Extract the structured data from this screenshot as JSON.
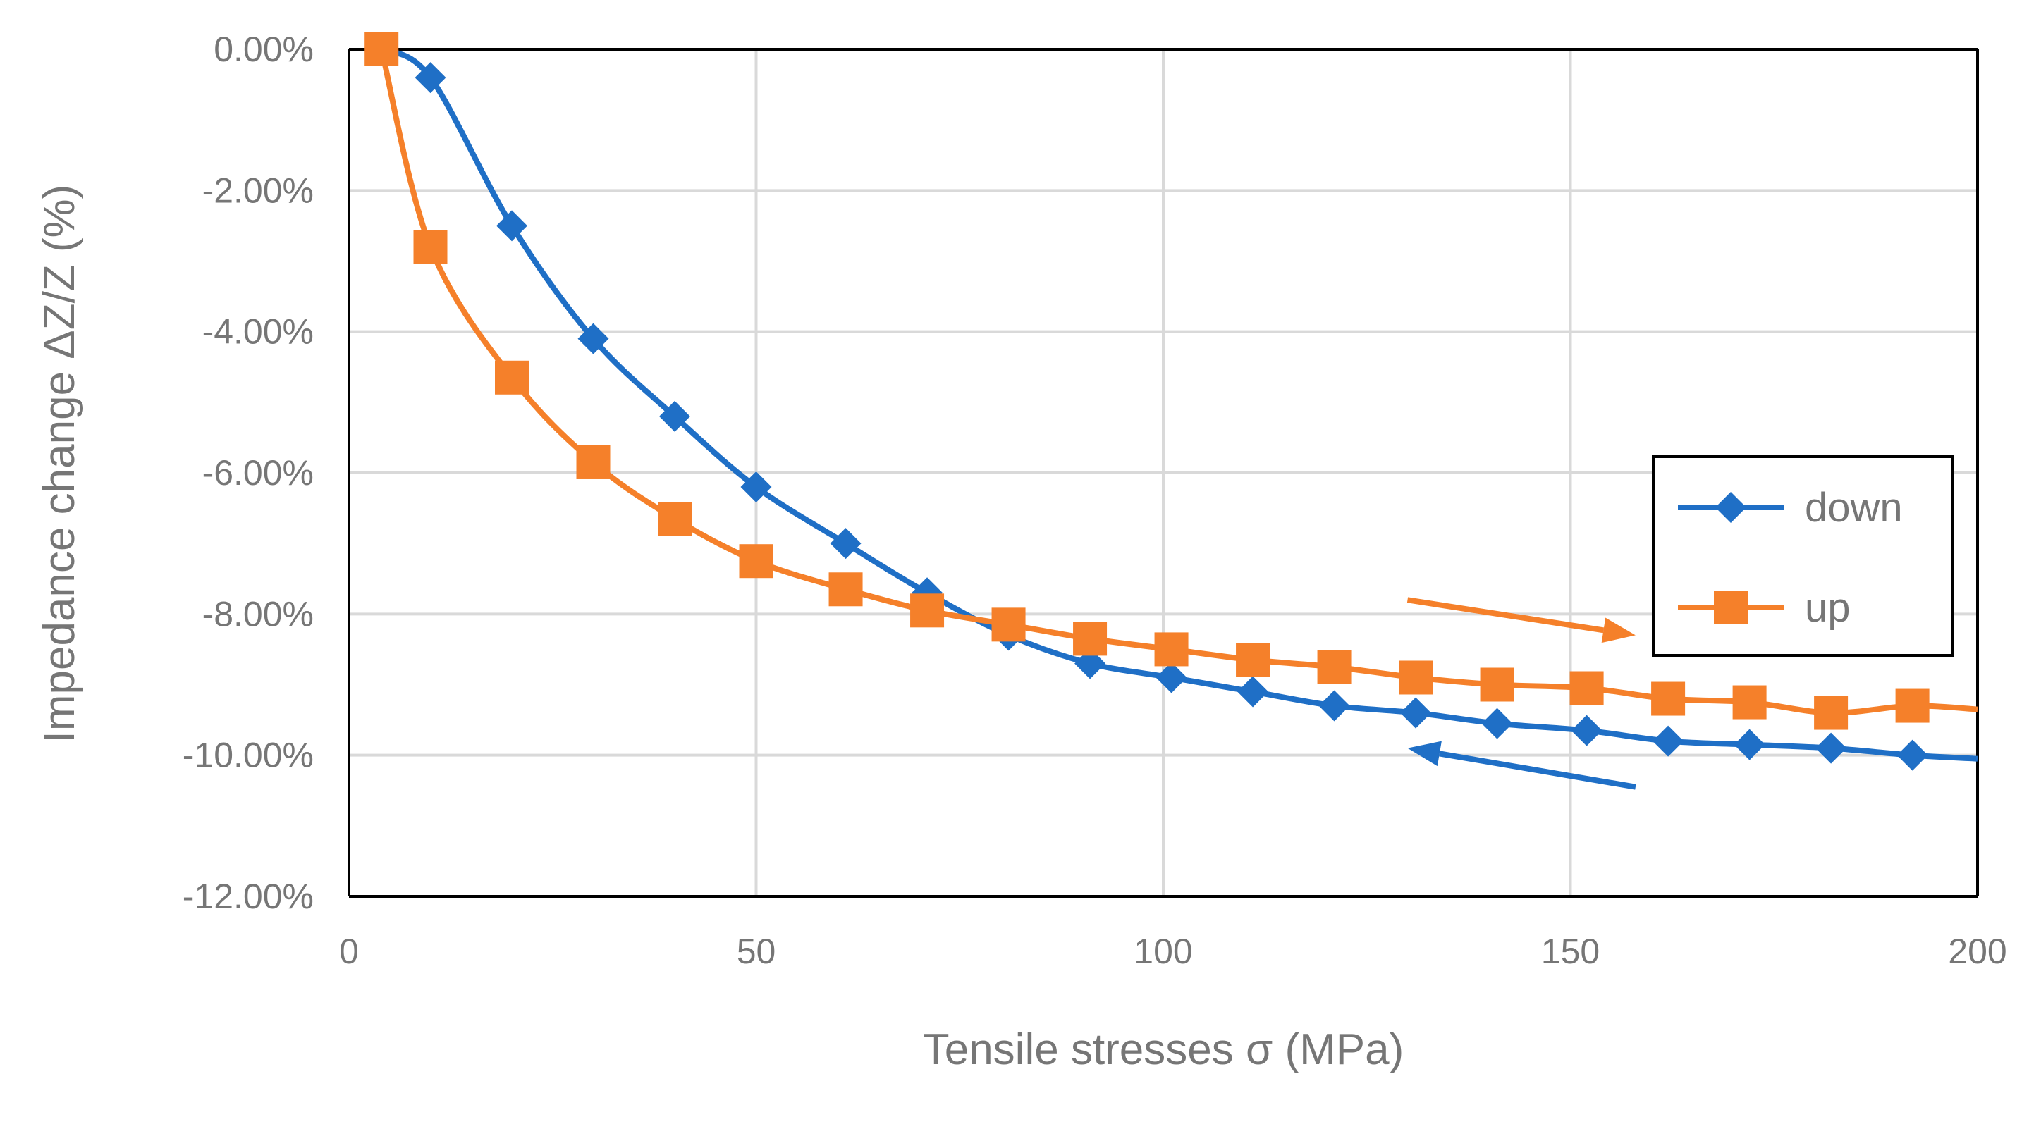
{
  "chart_data": {
    "type": "line",
    "title": "",
    "xlabel": "Tensile stresses σ (MPa)",
    "ylabel": "Impedance change ΔZ/Z (%)",
    "xlim": [
      0,
      200
    ],
    "ylim": [
      -12,
      0
    ],
    "x_ticks": [
      0,
      50,
      100,
      150,
      200
    ],
    "x_tick_labels": [
      "0",
      "50",
      "100",
      "150",
      "200"
    ],
    "y_ticks": [
      0,
      -2,
      -4,
      -6,
      -8,
      -10,
      -12
    ],
    "y_tick_labels": [
      "0.00%",
      "-2.00%",
      "-4.00%",
      "-6.00%",
      "-8.00%",
      "-10.00%",
      "-12.00%"
    ],
    "grid": true,
    "legend_position": "right",
    "series": [
      {
        "name": "down",
        "color": "#1f6fc6",
        "marker": "diamond",
        "x": [
          4,
          10,
          20,
          30,
          40,
          50,
          61,
          71,
          81,
          91,
          101,
          111,
          121,
          131,
          141,
          152,
          162,
          172,
          182,
          192,
          200
        ],
        "y": [
          0,
          -0.4,
          -2.5,
          -4.1,
          -5.2,
          -6.2,
          -7.0,
          -7.7,
          -8.3,
          -8.7,
          -8.9,
          -9.1,
          -9.3,
          -9.4,
          -9.55,
          -9.65,
          -9.8,
          -9.85,
          -9.9,
          -10.0,
          -10.05
        ]
      },
      {
        "name": "up",
        "color": "#f5802a",
        "marker": "square",
        "x": [
          4,
          10,
          20,
          30,
          40,
          50,
          61,
          71,
          81,
          91,
          101,
          111,
          121,
          131,
          141,
          152,
          162,
          172,
          182,
          192,
          200
        ],
        "y": [
          0,
          -2.8,
          -4.65,
          -5.85,
          -6.65,
          -7.25,
          -7.65,
          -7.95,
          -8.15,
          -8.35,
          -8.5,
          -8.65,
          -8.75,
          -8.9,
          -9.0,
          -9.05,
          -9.2,
          -9.25,
          -9.4,
          -9.3,
          -9.35
        ]
      }
    ],
    "annotations": [
      {
        "type": "arrow",
        "color": "#f5802a",
        "from": [
          130,
          -7.8
        ],
        "to": [
          158,
          -8.3
        ]
      },
      {
        "type": "arrow",
        "color": "#1f6fc6",
        "from": [
          158,
          -10.45
        ],
        "to": [
          130,
          -9.9
        ]
      }
    ]
  }
}
